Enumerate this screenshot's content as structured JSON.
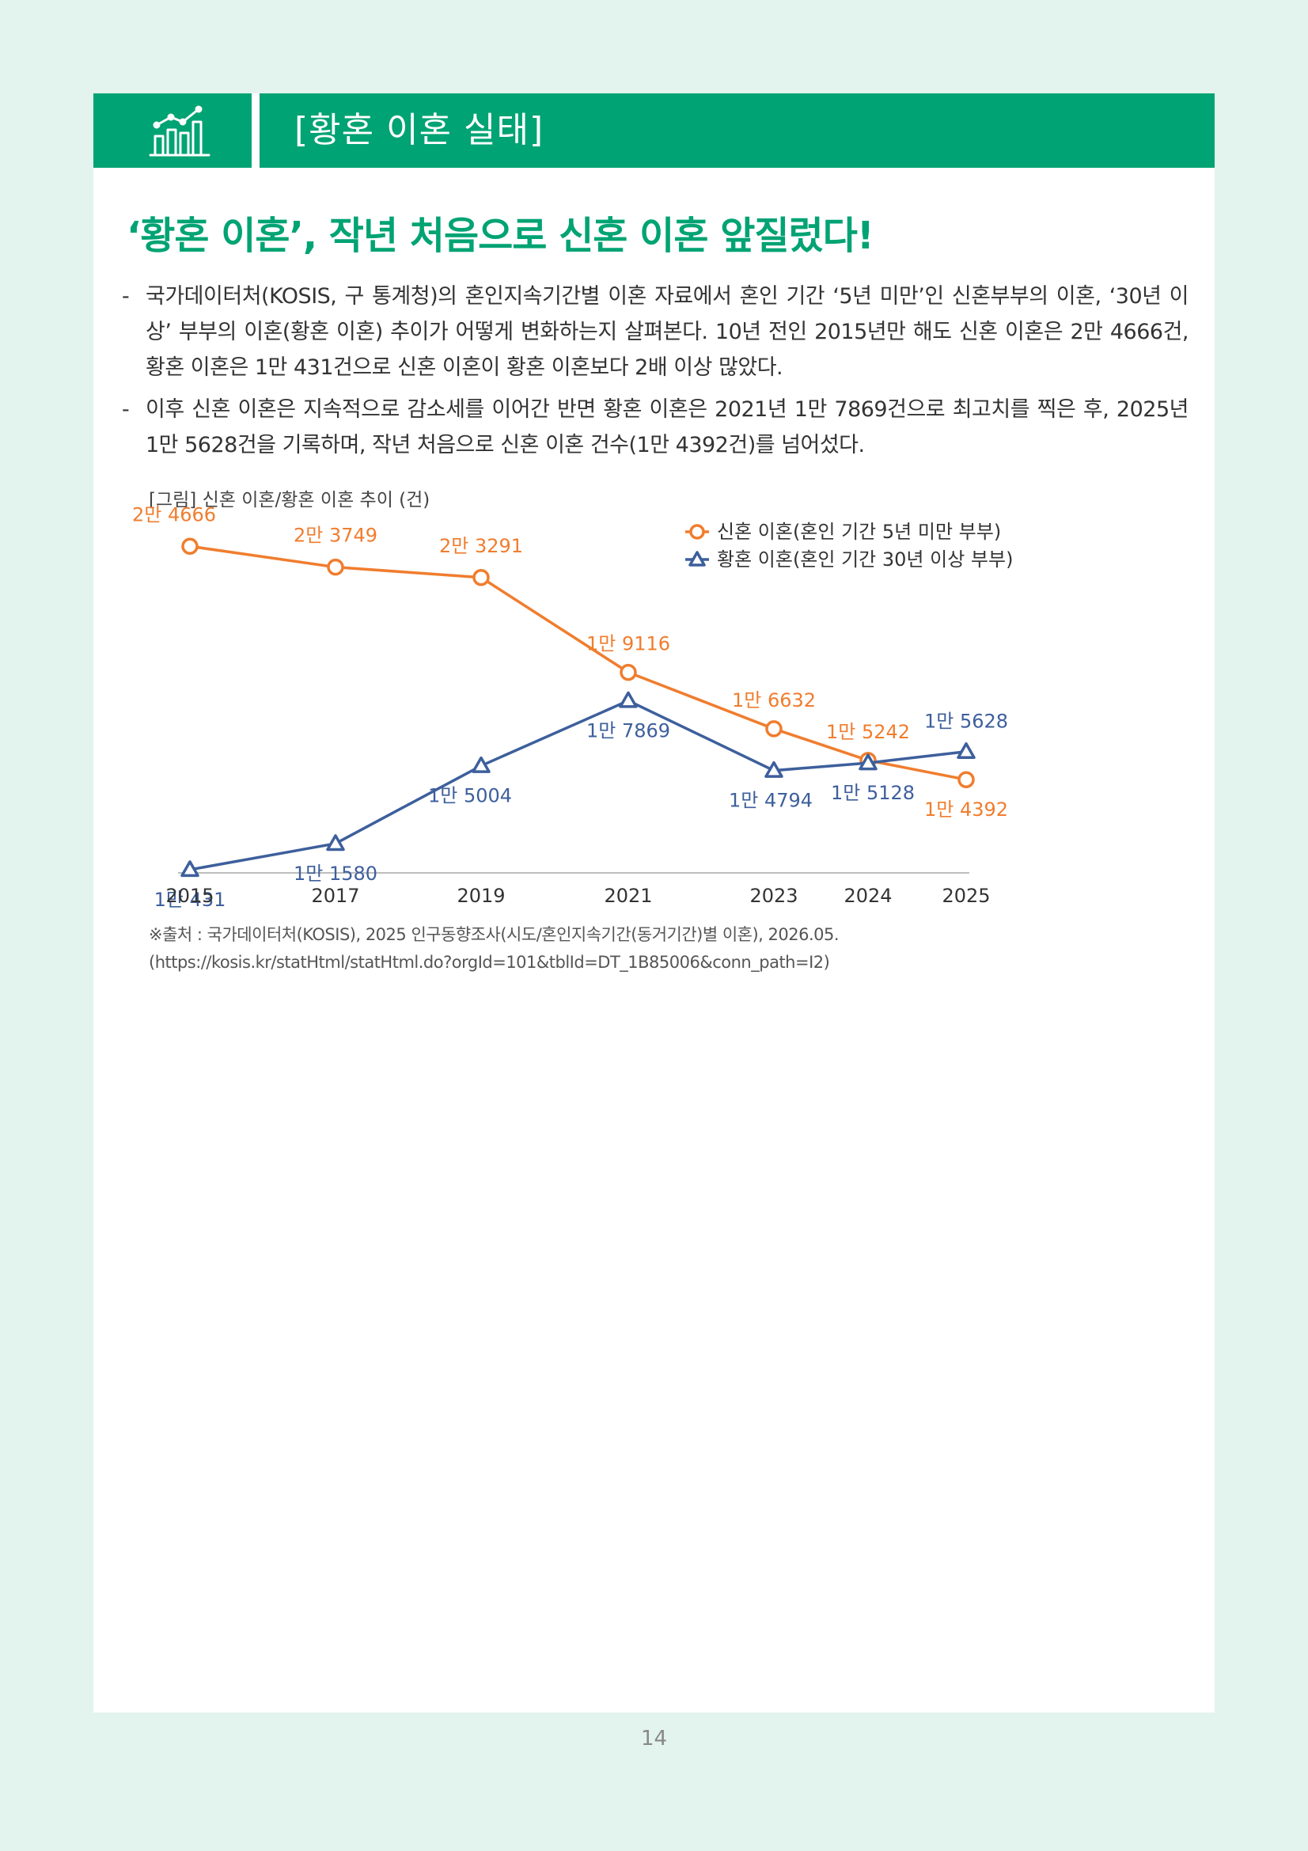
{
  "header": {
    "icon": "bar-line-chart-icon",
    "title": "[황혼 이혼 실태]"
  },
  "headline": "‘황혼 이혼’, 작년 처음으로 신혼 이혼 앞질렀다!",
  "bullets": [
    {
      "dash": "-",
      "text": "국가데이터처(KOSIS, 구 통계청)의 혼인지속기간별 이혼 자료에서 혼인 기간 ‘5년 미만’인 신혼부부의 이혼, ‘30년 이상’ 부부의 이혼(황혼 이혼) 추이가 어떻게 변화하는지 살펴본다. 10년 전인 2015년만 해도 신혼 이혼은 2만 4666건, 황혼 이혼은 1만 431건으로 신혼 이혼이 황혼 이혼보다 2배 이상 많았다."
    },
    {
      "dash": "-",
      "text": "이후 신혼 이혼은 지속적으로 감소세를 이어간 반면 황혼 이혼은 2021년 1만 7869건으로 최고치를 찍은 후, 2025년 1만 5628건을 기록하며, 작년 처음으로 신혼 이혼 건수(1만 4392건)를 넘어섰다."
    }
  ],
  "figure_caption": "[그림] 신혼 이혼/황혼 이혼 추이 (건)",
  "chart_data": {
    "type": "line",
    "title": "[그림] 신혼 이혼/황혼 이혼 추이 (건)",
    "x": [
      "2015",
      "2017",
      "2019",
      "2021",
      "2023",
      "2024",
      "2025"
    ],
    "ylim": [
      9000,
      26000
    ],
    "grid": false,
    "legend_position": "top-right",
    "series": [
      {
        "name": "신혼 이혼(혼인 기간 5년 미만 부부)",
        "color": "#f07d2e",
        "marker": "circle",
        "values": [
          24666,
          23749,
          23291,
          19116,
          16632,
          15242,
          14392
        ],
        "labels": [
          "2만 4666",
          "2만 3749",
          "2만 3291",
          "1만 9116",
          "1만 6632",
          "1만 5242",
          "1만 4392"
        ]
      },
      {
        "name": "황혼 이혼(혼인 기간 30년 이상 부부)",
        "color": "#3d5f9c",
        "marker": "triangle",
        "values": [
          10431,
          11580,
          15004,
          17869,
          14794,
          15128,
          15628
        ],
        "labels": [
          "1만 431",
          "1만 1580",
          "1만 5004",
          "1만 7869",
          "1만 4794",
          "1만 5128",
          "1만 5628"
        ]
      }
    ]
  },
  "source": "※출처 : 국가데이터처(KOSIS), 2025 인구동향조사(시도/혼인지속기간(동거기간)별 이혼), 2026.05. (https://kosis.kr/statHtml/statHtml.do?orgId=101&tblId=DT_1B85006&conn_path=I2)",
  "page_number": "14"
}
